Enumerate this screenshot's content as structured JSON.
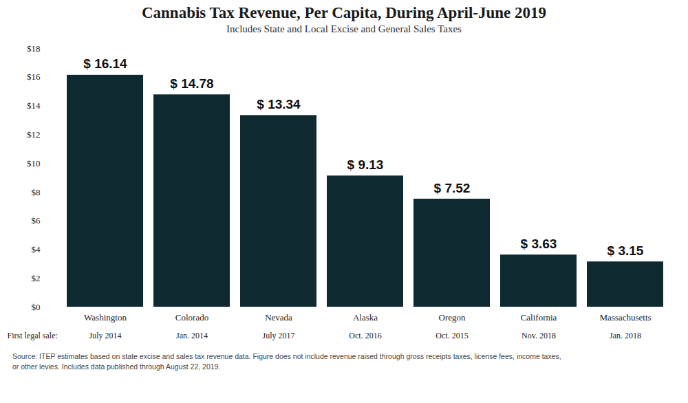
{
  "chart_data": {
    "type": "bar",
    "title": "Cannabis Tax Revenue, Per Capita, During April-June 2019",
    "subtitle": "Includes State and Local Excise and General Sales Taxes",
    "categories": [
      "Washington",
      "Colorado",
      "Nevada",
      "Alaska",
      "Oregon",
      "California",
      "Massachusetts"
    ],
    "values": [
      16.14,
      14.78,
      13.34,
      9.13,
      7.52,
      3.63,
      3.15
    ],
    "value_labels": [
      "$ 16.14",
      "$ 14.78",
      "$ 13.34",
      "$ 9.13",
      "$ 7.52",
      "$ 3.63",
      "$ 3.15"
    ],
    "data_labels": true,
    "color": "#0e2a30",
    "ylim": [
      0,
      18
    ],
    "yticks": [
      {
        "value": 0,
        "label": "$0"
      },
      {
        "value": 2,
        "label": "$2"
      },
      {
        "value": 4,
        "label": "$4"
      },
      {
        "value": 6,
        "label": "$6"
      },
      {
        "value": 8,
        "label": "$8"
      },
      {
        "value": 10,
        "label": "$10"
      },
      {
        "value": 12,
        "label": "$12"
      },
      {
        "value": 14,
        "label": "$14"
      },
      {
        "value": 16,
        "label": "$16"
      },
      {
        "value": 18,
        "label": "$18"
      }
    ],
    "grid": false,
    "first_legal_sale": {
      "label": "First legal sale:",
      "dates": [
        "July 2014",
        "Jan. 2014",
        "July 2017",
        "Oct. 2016",
        "Oct. 2015",
        "Nov. 2018",
        "Jan. 2018"
      ]
    },
    "caption": "Source: ITEP estimates based on state excise and sales tax revenue data. Figure does not include revenue raised through gross receipts taxes, license fees, income taxes, or other levies. Includes data published through August 22, 2019."
  }
}
